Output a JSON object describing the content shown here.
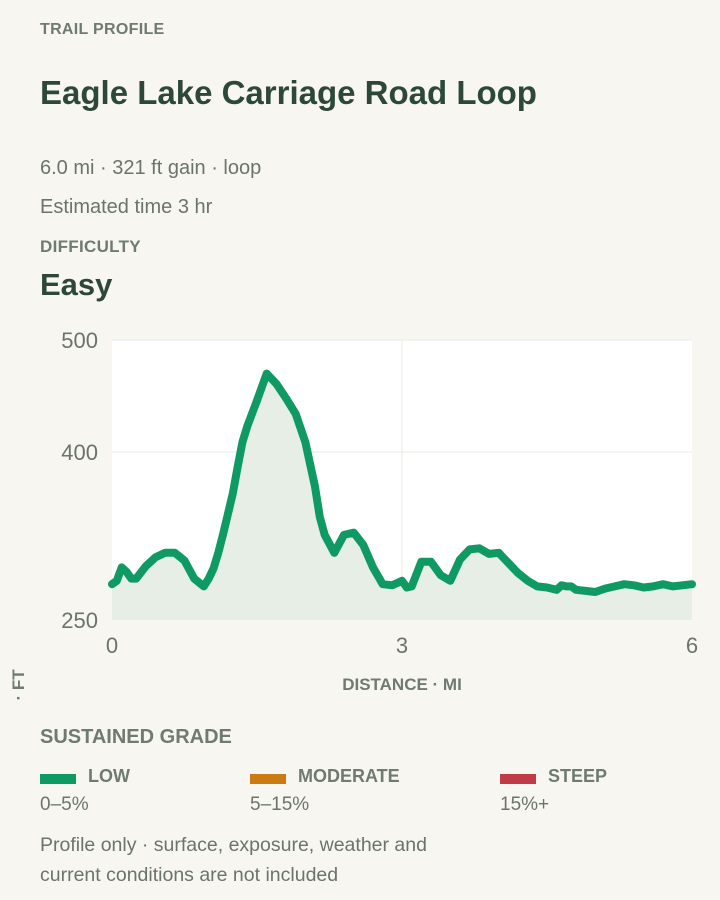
{
  "header": {
    "eyebrow": "TRAIL PROFILE",
    "title": "Eagle Lake Carriage Road Loop",
    "stats": "6.0 mi · 321 ft gain · loop",
    "time": "Estimated time 3 hr",
    "difficulty_label": "DIFFICULTY",
    "difficulty_value": "Easy"
  },
  "chart_data": {
    "type": "line",
    "x": [
      0,
      0.05,
      0.1,
      0.15,
      0.2,
      0.25,
      0.35,
      0.45,
      0.55,
      0.65,
      0.75,
      0.85,
      0.95,
      1.0,
      1.05,
      1.1,
      1.15,
      1.25,
      1.3,
      1.35,
      1.4,
      1.5,
      1.6,
      1.7,
      1.8,
      1.9,
      2.0,
      2.1,
      2.15,
      2.2,
      2.3,
      2.4,
      2.5,
      2.6,
      2.7,
      2.8,
      2.9,
      3.0,
      3.05,
      3.1,
      3.2,
      3.3,
      3.4,
      3.5,
      3.6,
      3.7,
      3.8,
      3.9,
      4.0,
      4.1,
      4.2,
      4.3,
      4.4,
      4.5,
      4.6,
      4.65,
      4.7,
      4.75,
      4.8,
      4.9,
      5.0,
      5.1,
      5.2,
      5.3,
      5.4,
      5.5,
      5.6,
      5.7,
      5.8,
      5.9,
      6.0
    ],
    "y": [
      282,
      285,
      297,
      293,
      287,
      287,
      298,
      306,
      310,
      310,
      303,
      287,
      280,
      287,
      296,
      310,
      327,
      363,
      387,
      409,
      423,
      446,
      470,
      461,
      448,
      434,
      409,
      369,
      342,
      326,
      310,
      326,
      328,
      317,
      297,
      282,
      281,
      285,
      279,
      280,
      302,
      302,
      290,
      285,
      304,
      313,
      314,
      309,
      310,
      301,
      292,
      285,
      280,
      279,
      277,
      281,
      280,
      280,
      277,
      276,
      275,
      278,
      280,
      282,
      281,
      279,
      280,
      282,
      280,
      281,
      282
    ],
    "xlim": [
      0,
      6
    ],
    "ylim": [
      250,
      500
    ],
    "xticks": [
      "0",
      "3",
      "6"
    ],
    "yticks": [
      "250",
      "400",
      "500"
    ],
    "xlabel": "DISTANCE · MI",
    "ylabel": "ELEVATION · FT",
    "grid": true,
    "line_color": "#0f9a64",
    "fill_color": "#e6eee6"
  },
  "legend": {
    "title": "SUSTAINED GRADE",
    "items": [
      {
        "name": "LOW",
        "range": "0–5%",
        "color": "#0f9a64"
      },
      {
        "name": "MODERATE",
        "range": "5–15%",
        "color": "#cc7a14"
      },
      {
        "name": "STEEP",
        "range": "15%+",
        "color": "#c13a48"
      }
    ]
  },
  "footnote": "Profile only · surface, exposure, weather and current conditions are not included"
}
